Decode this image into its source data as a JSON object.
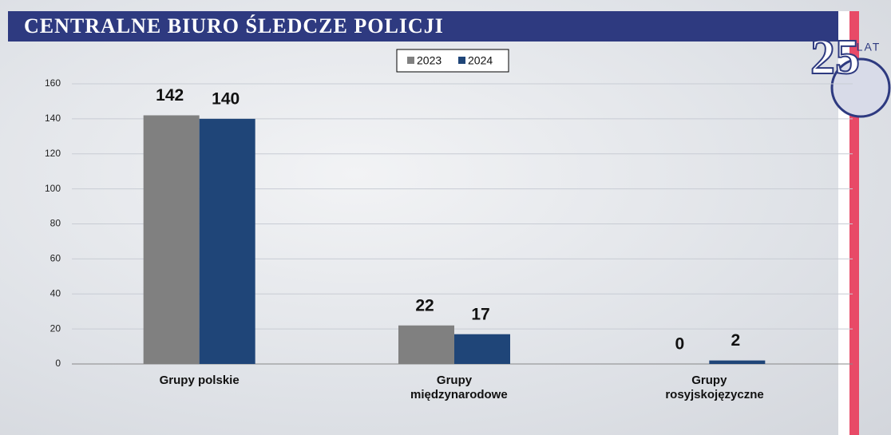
{
  "header": {
    "title": "CENTRALNE BIURO ŚLEDCZE POLICJI",
    "logo_number": "25",
    "logo_text": "LAT"
  },
  "chart_data": {
    "type": "bar",
    "categories": [
      "Grupy polskie",
      "Grupy międzynarodowe",
      "Grupy rosyjskojęzyczne"
    ],
    "series": [
      {
        "name": "2023",
        "color": "#808080",
        "values": [
          142,
          22,
          0
        ]
      },
      {
        "name": "2024",
        "color": "#1f4578",
        "values": [
          140,
          17,
          2
        ]
      }
    ],
    "ylim": [
      0,
      160
    ],
    "yticks": [
      0,
      20,
      40,
      60,
      80,
      100,
      120,
      140,
      160
    ],
    "grid": true,
    "legend": "top"
  }
}
